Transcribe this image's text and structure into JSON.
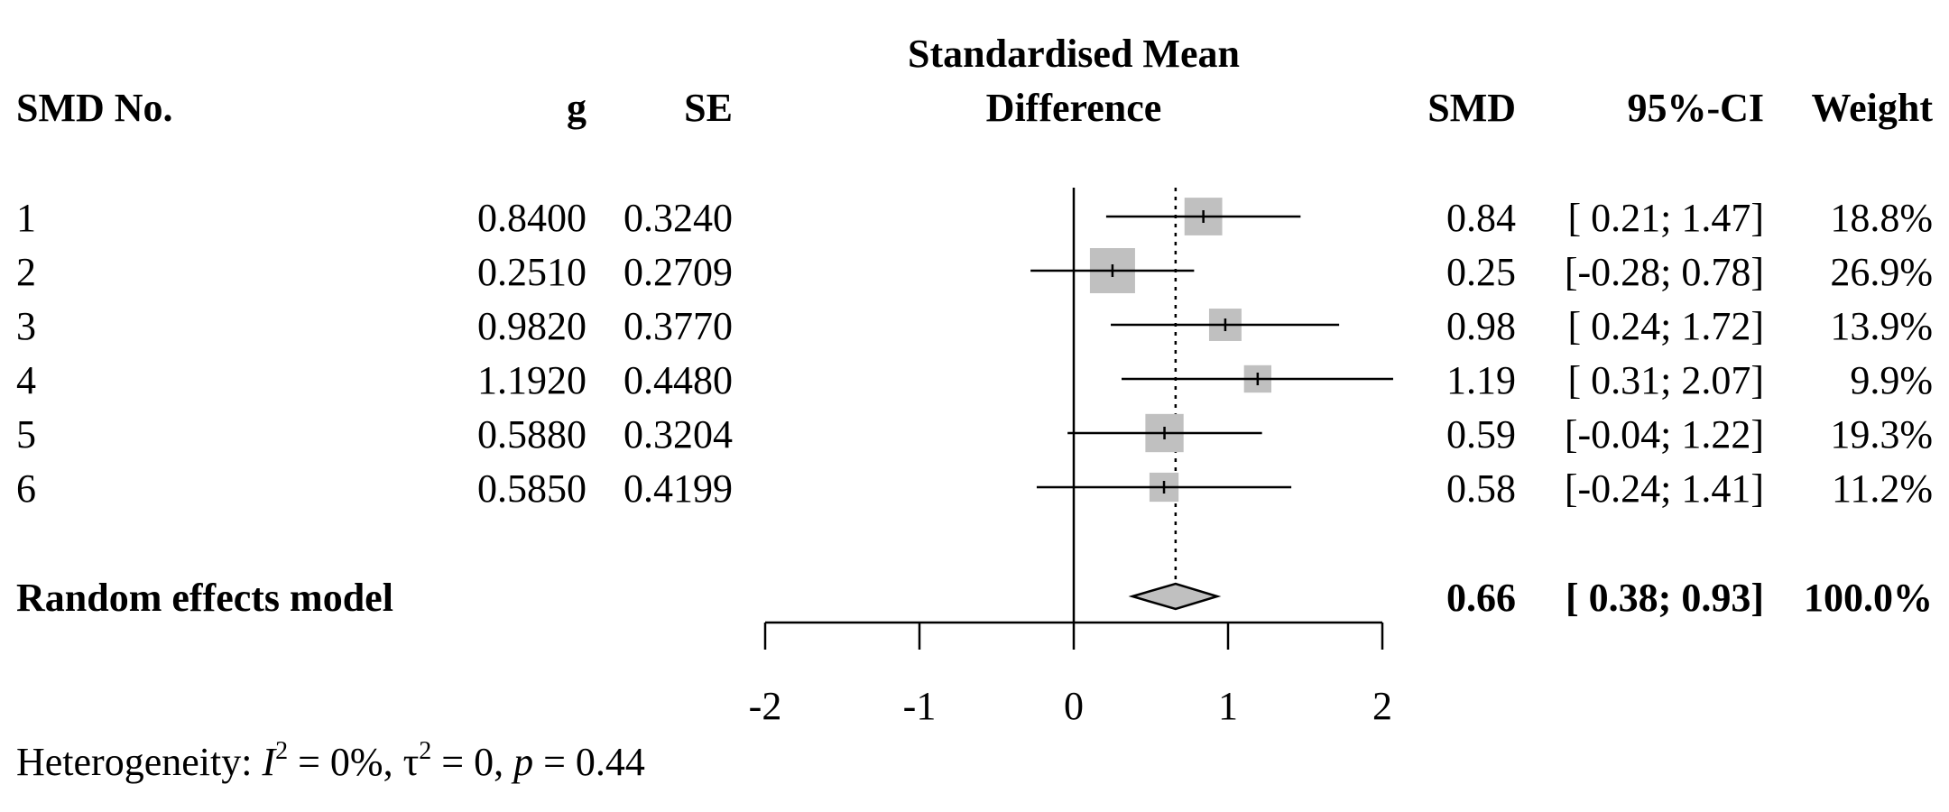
{
  "headers": {
    "study": "SMD No.",
    "g": "g",
    "se": "SE",
    "plot_title_line1": "Standardised Mean",
    "plot_title_line2": "Difference",
    "smd": "SMD",
    "ci": "95%-CI",
    "weight": "Weight"
  },
  "studies": [
    {
      "id": "1",
      "g": "0.8400",
      "se": "0.3240",
      "smd": "0.84",
      "ci": "[ 0.21; 1.47]",
      "weight": "18.8%"
    },
    {
      "id": "2",
      "g": "0.2510",
      "se": "0.2709",
      "smd": "0.25",
      "ci": "[-0.28; 0.78]",
      "weight": "26.9%"
    },
    {
      "id": "3",
      "g": "0.9820",
      "se": "0.3770",
      "smd": "0.98",
      "ci": "[ 0.24; 1.72]",
      "weight": "13.9%"
    },
    {
      "id": "4",
      "g": "1.1920",
      "se": "0.4480",
      "smd": "1.19",
      "ci": "[ 0.31; 2.07]",
      "weight": "9.9%"
    },
    {
      "id": "5",
      "g": "0.5880",
      "se": "0.3204",
      "smd": "0.59",
      "ci": "[-0.04; 1.22]",
      "weight": "19.3%"
    },
    {
      "id": "6",
      "g": "0.5850",
      "se": "0.4199",
      "smd": "0.58",
      "ci": "[-0.24; 1.41]",
      "weight": "11.2%"
    }
  ],
  "summary": {
    "label": "Random effects model",
    "smd": "0.66",
    "ci": "[ 0.38; 0.93]",
    "weight": "100.0%"
  },
  "heterogeneity": {
    "prefix": "Heterogeneity: ",
    "i_symbol": "I",
    "i_sup": "2",
    "i_value": " = 0%, ",
    "tau_symbol": "τ",
    "tau_sup": "2",
    "tau_value": " = 0, ",
    "p_symbol": "p",
    "p_value": " = 0.44"
  },
  "chart_data": {
    "type": "forest",
    "xlim": [
      -2,
      2
    ],
    "x_ticks": [
      -2,
      -1,
      0,
      1,
      2
    ],
    "x_tick_labels": [
      "-2",
      "-1",
      "0",
      "1",
      "2"
    ],
    "points": [
      {
        "est": 0.84,
        "lo": 0.21,
        "hi": 1.47,
        "weight": 18.8
      },
      {
        "est": 0.251,
        "lo": -0.28,
        "hi": 0.78,
        "weight": 26.9
      },
      {
        "est": 0.982,
        "lo": 0.24,
        "hi": 1.72,
        "weight": 13.9
      },
      {
        "est": 1.192,
        "lo": 0.31,
        "hi": 2.07,
        "weight": 9.9
      },
      {
        "est": 0.588,
        "lo": -0.04,
        "hi": 1.22,
        "weight": 19.3
      },
      {
        "est": 0.585,
        "lo": -0.24,
        "hi": 1.41,
        "weight": 11.2
      }
    ],
    "pooled": {
      "est": 0.66,
      "lo": 0.38,
      "hi": 0.93
    },
    "reference_line": 0,
    "pooled_line": 0.66,
    "box_color": "#c0c0c0",
    "diamond_color": "#c0c0c0"
  }
}
